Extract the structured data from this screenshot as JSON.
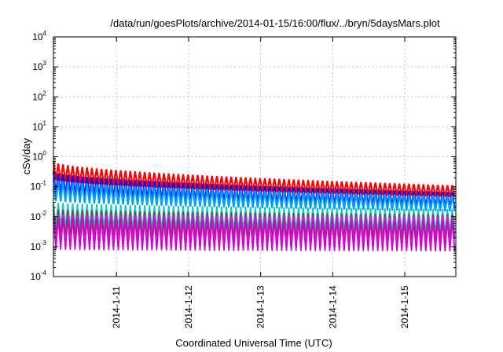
{
  "chart_data": {
    "type": "line",
    "title": "/data/run/goesPlots/archive/2014-01-15/16:00/flux/../bryn/5daysMars.plot",
    "xlabel": "Coordinated Universal Time (UTC)",
    "ylabel": "cSv/day",
    "yscale": "log",
    "ylim": [
      0.0001,
      10000
    ],
    "xlim": [
      "2014-01-10 03:00",
      "2014-01-15 17:00"
    ],
    "x_ticks": [
      "2014-1-11",
      "2014-1-12",
      "2014-1-13",
      "2014-1-14",
      "2014-1-15"
    ],
    "y_ticks": [
      {
        "base": "10",
        "exp": "-4"
      },
      {
        "base": "10",
        "exp": "-3"
      },
      {
        "base": "10",
        "exp": "-2"
      },
      {
        "base": "10",
        "exp": "-1"
      },
      {
        "base": "10",
        "exp": "0"
      },
      {
        "base": "10",
        "exp": "1"
      },
      {
        "base": "10",
        "exp": "2"
      },
      {
        "base": "10",
        "exp": "3"
      },
      {
        "base": "10",
        "exp": "4"
      }
    ],
    "grid": true,
    "period_hours": 1.6,
    "series": [
      {
        "color": "#ff0000",
        "peak_start": 0.7,
        "peak_end": 0.11,
        "trough_start": 0.18,
        "trough_end": 0.045
      },
      {
        "color": "#0a0aff",
        "peak_start": 0.32,
        "peak_end": 0.065,
        "trough_start": 0.065,
        "trough_end": 0.02
      },
      {
        "color": "#00a0ff",
        "peak_start": 0.18,
        "peak_end": 0.05,
        "trough_start": 0.035,
        "trough_end": 0.015
      },
      {
        "color": "#00bfa0",
        "peak_start": 0.03,
        "peak_end": 0.018,
        "trough_start": 0.005,
        "trough_end": 0.003
      },
      {
        "color": "#00d8d8",
        "peak_start": 0.025,
        "peak_end": 0.015,
        "trough_start": 0.004,
        "trough_end": 0.0025
      },
      {
        "color": "#8a3a3a",
        "peak_start": 0.018,
        "peak_end": 0.012,
        "trough_start": 0.0025,
        "trough_end": 0.0018
      },
      {
        "color": "#ff00ff",
        "peak_start": 0.012,
        "peak_end": 0.01,
        "trough_start": 0.0012,
        "trough_end": 0.0009
      },
      {
        "color": "#d000d0",
        "peak_start": 0.009,
        "peak_end": 0.007,
        "trough_start": 0.0008,
        "trough_end": 0.0007
      }
    ]
  }
}
